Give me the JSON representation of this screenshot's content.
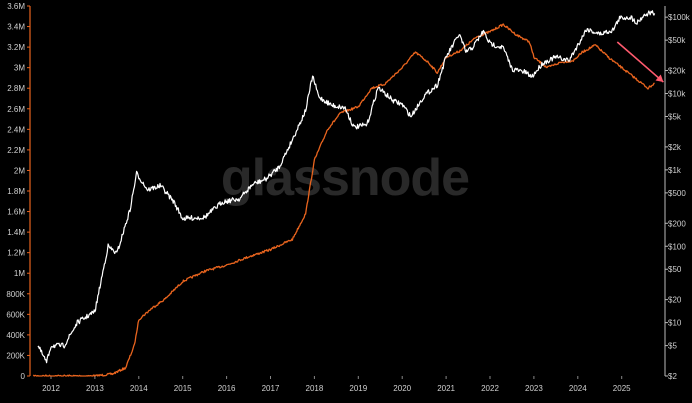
{
  "watermark": "glassnode",
  "chart_data": {
    "type": "line",
    "title": "",
    "xlabel": "",
    "x_ticks": [
      "2012",
      "2013",
      "2014",
      "2015",
      "2016",
      "2017",
      "2018",
      "2019",
      "2020",
      "2021",
      "2022",
      "2023",
      "2024",
      "2025"
    ],
    "left_axis": {
      "scale": "linear",
      "range": [
        0,
        3600000
      ],
      "ticks": [
        {
          "v": 0,
          "label": "0"
        },
        {
          "v": 200000,
          "label": "200K"
        },
        {
          "v": 400000,
          "label": "400K"
        },
        {
          "v": 600000,
          "label": "600K"
        },
        {
          "v": 800000,
          "label": "800K"
        },
        {
          "v": 1000000,
          "label": "1M"
        },
        {
          "v": 1200000,
          "label": "1.2M"
        },
        {
          "v": 1400000,
          "label": "1.4M"
        },
        {
          "v": 1600000,
          "label": "1.6M"
        },
        {
          "v": 1800000,
          "label": "1.8M"
        },
        {
          "v": 2000000,
          "label": "2M"
        },
        {
          "v": 2200000,
          "label": "2.2M"
        },
        {
          "v": 2400000,
          "label": "2.4M"
        },
        {
          "v": 2600000,
          "label": "2.6M"
        },
        {
          "v": 2800000,
          "label": "2.8M"
        },
        {
          "v": 3000000,
          "label": "3M"
        },
        {
          "v": 3200000,
          "label": "3.2M"
        },
        {
          "v": 3400000,
          "label": "3.4M"
        },
        {
          "v": 3600000,
          "label": "3.6M"
        }
      ],
      "color": "#e8641e"
    },
    "right_axis": {
      "scale": "log",
      "range": [
        2,
        140000
      ],
      "ticks": [
        {
          "v": 2,
          "label": "$2"
        },
        {
          "v": 5,
          "label": "$5"
        },
        {
          "v": 10,
          "label": "$10"
        },
        {
          "v": 20,
          "label": "$20"
        },
        {
          "v": 50,
          "label": "$50"
        },
        {
          "v": 100,
          "label": "$100"
        },
        {
          "v": 200,
          "label": "$200"
        },
        {
          "v": 500,
          "label": "$500"
        },
        {
          "v": 1000,
          "label": "$1k"
        },
        {
          "v": 2000,
          "label": "$2k"
        },
        {
          "v": 5000,
          "label": "$5k"
        },
        {
          "v": 10000,
          "label": "$10k"
        },
        {
          "v": 20000,
          "label": "$20k"
        },
        {
          "v": 50000,
          "label": "$50k"
        },
        {
          "v": 100000,
          "label": "$100k"
        }
      ],
      "color": "#ffffff"
    },
    "series": [
      {
        "axis": "left",
        "color": "#e8641e",
        "points": [
          [
            2011.6,
            0
          ],
          [
            2012.0,
            0
          ],
          [
            2012.5,
            0
          ],
          [
            2013.0,
            0
          ],
          [
            2013.4,
            20000
          ],
          [
            2013.7,
            80000
          ],
          [
            2013.9,
            300000
          ],
          [
            2014.0,
            550000
          ],
          [
            2014.3,
            660000
          ],
          [
            2014.6,
            750000
          ],
          [
            2015.0,
            920000
          ],
          [
            2015.5,
            1020000
          ],
          [
            2016.0,
            1080000
          ],
          [
            2016.5,
            1160000
          ],
          [
            2017.0,
            1230000
          ],
          [
            2017.5,
            1330000
          ],
          [
            2017.8,
            1580000
          ],
          [
            2018.0,
            2100000
          ],
          [
            2018.3,
            2400000
          ],
          [
            2018.6,
            2560000
          ],
          [
            2019.0,
            2620000
          ],
          [
            2019.3,
            2800000
          ],
          [
            2019.6,
            2840000
          ],
          [
            2020.0,
            3000000
          ],
          [
            2020.3,
            3150000
          ],
          [
            2020.6,
            3050000
          ],
          [
            2020.8,
            2950000
          ],
          [
            2021.0,
            3100000
          ],
          [
            2021.3,
            3160000
          ],
          [
            2021.7,
            3300000
          ],
          [
            2022.0,
            3350000
          ],
          [
            2022.3,
            3420000
          ],
          [
            2022.6,
            3320000
          ],
          [
            2022.9,
            3250000
          ],
          [
            2023.0,
            3100000
          ],
          [
            2023.3,
            3000000
          ],
          [
            2023.6,
            3050000
          ],
          [
            2023.9,
            3070000
          ],
          [
            2024.1,
            3150000
          ],
          [
            2024.4,
            3220000
          ],
          [
            2024.7,
            3100000
          ],
          [
            2025.0,
            3000000
          ],
          [
            2025.3,
            2900000
          ],
          [
            2025.6,
            2800000
          ],
          [
            2025.75,
            2850000
          ]
        ]
      },
      {
        "axis": "right",
        "color": "#ffffff",
        "points": [
          [
            2011.7,
            5
          ],
          [
            2011.9,
            3
          ],
          [
            2012.0,
            5
          ],
          [
            2012.3,
            5
          ],
          [
            2012.6,
            10
          ],
          [
            2013.0,
            14
          ],
          [
            2013.3,
            100
          ],
          [
            2013.5,
            80
          ],
          [
            2013.8,
            300
          ],
          [
            2013.95,
            900
          ],
          [
            2014.2,
            550
          ],
          [
            2014.5,
            620
          ],
          [
            2014.8,
            380
          ],
          [
            2015.0,
            230
          ],
          [
            2015.5,
            240
          ],
          [
            2015.9,
            380
          ],
          [
            2016.3,
            420
          ],
          [
            2016.6,
            650
          ],
          [
            2016.9,
            760
          ],
          [
            2017.2,
            1100
          ],
          [
            2017.5,
            2500
          ],
          [
            2017.8,
            6000
          ],
          [
            2017.96,
            17000
          ],
          [
            2018.1,
            9000
          ],
          [
            2018.4,
            7000
          ],
          [
            2018.7,
            6500
          ],
          [
            2018.9,
            3600
          ],
          [
            2019.2,
            3900
          ],
          [
            2019.45,
            12000
          ],
          [
            2019.8,
            8000
          ],
          [
            2020.0,
            7200
          ],
          [
            2020.2,
            5000
          ],
          [
            2020.5,
            9300
          ],
          [
            2020.8,
            13000
          ],
          [
            2021.0,
            30000
          ],
          [
            2021.3,
            60000
          ],
          [
            2021.45,
            35000
          ],
          [
            2021.6,
            40000
          ],
          [
            2021.85,
            65000
          ],
          [
            2022.0,
            45000
          ],
          [
            2022.3,
            40000
          ],
          [
            2022.5,
            21000
          ],
          [
            2022.8,
            19000
          ],
          [
            2022.95,
            16500
          ],
          [
            2023.2,
            25000
          ],
          [
            2023.5,
            30000
          ],
          [
            2023.8,
            27000
          ],
          [
            2024.0,
            43000
          ],
          [
            2024.2,
            70000
          ],
          [
            2024.5,
            60000
          ],
          [
            2024.8,
            68000
          ],
          [
            2024.95,
            97000
          ],
          [
            2025.2,
            100000
          ],
          [
            2025.35,
            85000
          ],
          [
            2025.5,
            105000
          ],
          [
            2025.65,
            115000
          ],
          [
            2025.75,
            112000
          ]
        ]
      }
    ],
    "annotations": [
      {
        "type": "arrow",
        "color": "#ff5a6e",
        "from": [
          2024.9,
          3250000
        ],
        "to": [
          2025.95,
          2860000
        ]
      }
    ],
    "grid": false,
    "legend": "none"
  }
}
